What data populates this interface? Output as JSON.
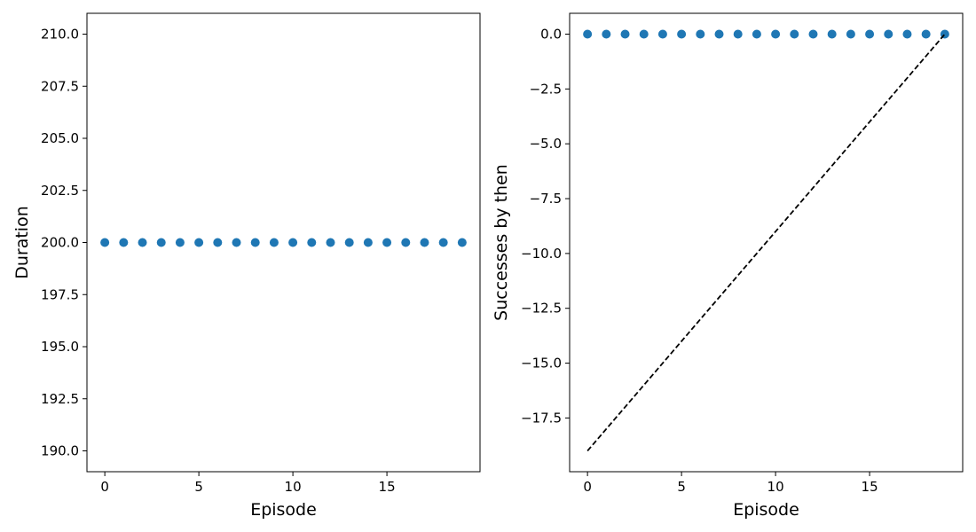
{
  "chart_data": [
    {
      "type": "scatter",
      "title": "",
      "xlabel": "Episode",
      "ylabel": "Duration",
      "xlim": [
        -0.95,
        19.95
      ],
      "ylim": [
        189.0,
        211.0
      ],
      "xticks": [
        0,
        5,
        10,
        15
      ],
      "xtick_labels": [
        "0",
        "5",
        "10",
        "15"
      ],
      "yticks": [
        190.0,
        192.5,
        195.0,
        197.5,
        200.0,
        202.5,
        205.0,
        207.5,
        210.0
      ],
      "ytick_labels": [
        "190.0",
        "192.5",
        "195.0",
        "197.5",
        "200.0",
        "202.5",
        "205.0",
        "207.5",
        "210.0"
      ],
      "grid": false,
      "series": [
        {
          "kind": "scatter",
          "color": "#1f77b4",
          "x": [
            0,
            1,
            2,
            3,
            4,
            5,
            6,
            7,
            8,
            9,
            10,
            11,
            12,
            13,
            14,
            15,
            16,
            17,
            18,
            19
          ],
          "y": [
            200,
            200,
            200,
            200,
            200,
            200,
            200,
            200,
            200,
            200,
            200,
            200,
            200,
            200,
            200,
            200,
            200,
            200,
            200,
            200
          ]
        }
      ]
    },
    {
      "type": "scatter",
      "title": "",
      "xlabel": "Episode",
      "ylabel": "Successes by then",
      "xlim": [
        -0.95,
        19.95
      ],
      "ylim": [
        -19.95,
        0.95
      ],
      "xticks": [
        0,
        5,
        10,
        15
      ],
      "xtick_labels": [
        "0",
        "5",
        "10",
        "15"
      ],
      "yticks": [
        0.0,
        -2.5,
        -5.0,
        -7.5,
        -10.0,
        -12.5,
        -15.0,
        -17.5
      ],
      "ytick_labels": [
        "0.0",
        "−2.5",
        "−5.0",
        "−7.5",
        "−10.0",
        "−12.5",
        "−15.0",
        "−17.5"
      ],
      "grid": false,
      "series": [
        {
          "kind": "scatter",
          "color": "#1f77b4",
          "x": [
            0,
            1,
            2,
            3,
            4,
            5,
            6,
            7,
            8,
            9,
            10,
            11,
            12,
            13,
            14,
            15,
            16,
            17,
            18,
            19
          ],
          "y": [
            0,
            0,
            0,
            0,
            0,
            0,
            0,
            0,
            0,
            0,
            0,
            0,
            0,
            0,
            0,
            0,
            0,
            0,
            0,
            0
          ]
        },
        {
          "kind": "line",
          "style": "dashed",
          "color": "#000000",
          "x": [
            0,
            19
          ],
          "y": [
            -19,
            0
          ]
        }
      ]
    }
  ]
}
